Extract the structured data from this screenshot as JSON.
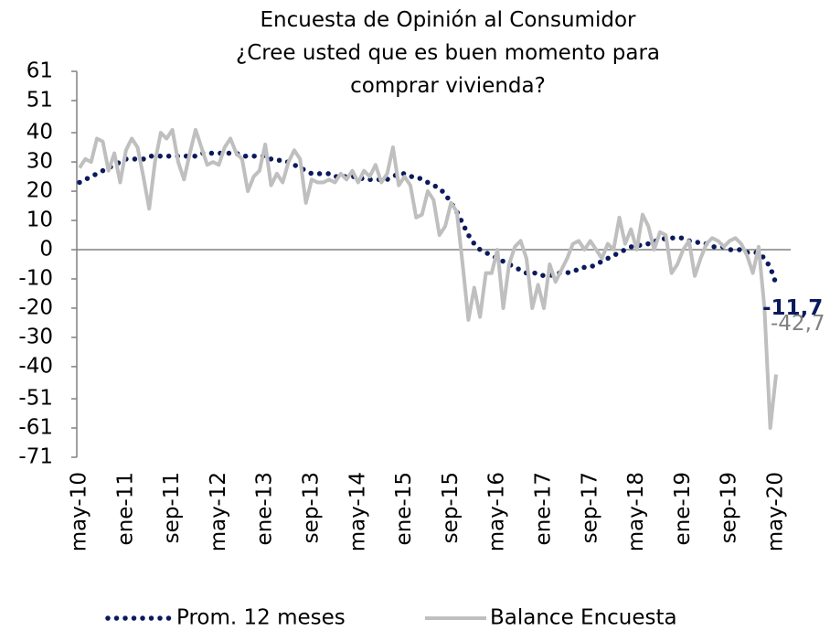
{
  "chart_data": {
    "type": "line",
    "title": "Encuesta de Opinión al Consumidor",
    "subtitle": "¿Cree usted que es buen momento para comprar vivienda?",
    "categories": [
      "may-10",
      null,
      null,
      null,
      null,
      null,
      null,
      null,
      "ene-11",
      null,
      null,
      null,
      null,
      null,
      null,
      null,
      "sep-11",
      null,
      null,
      null,
      null,
      null,
      null,
      null,
      "may-12",
      null,
      null,
      null,
      null,
      null,
      null,
      null,
      "ene-13",
      null,
      null,
      null,
      null,
      null,
      null,
      null,
      "sep-13",
      null,
      null,
      null,
      null,
      null,
      null,
      null,
      "may-14",
      null,
      null,
      null,
      null,
      null,
      null,
      null,
      "ene-15",
      null,
      null,
      null,
      null,
      null,
      null,
      null,
      "sep-15",
      null,
      null,
      null,
      null,
      null,
      null,
      null,
      "may-16",
      null,
      null,
      null,
      null,
      null,
      null,
      null,
      "ene-17",
      null,
      null,
      null,
      null,
      null,
      null,
      null,
      "sep-17",
      null,
      null,
      null,
      null,
      null,
      null,
      null,
      "may-18",
      null,
      null,
      null,
      null,
      null,
      null,
      null,
      "ene-19",
      null,
      null,
      null,
      null,
      null,
      null,
      null,
      "sep-19",
      null,
      null,
      null,
      null,
      null,
      null,
      null,
      "may-20"
    ],
    "series": [
      {
        "name": "Prom. 12 meses",
        "color": "#0b1a5c",
        "style": "dotted",
        "values": [
          23,
          24,
          25,
          26,
          27,
          28,
          29,
          30,
          31,
          31,
          31,
          31,
          32,
          32,
          32,
          32,
          32,
          32,
          32,
          32,
          32,
          33,
          33,
          33,
          33,
          33,
          33,
          33,
          32,
          32,
          32,
          32,
          32,
          31,
          31,
          30,
          30,
          29,
          28,
          27,
          26,
          26,
          26,
          26,
          25,
          25,
          25,
          25,
          25,
          24,
          24,
          24,
          24,
          24,
          25,
          26,
          26,
          25,
          25,
          24,
          23,
          22,
          21,
          19,
          16,
          13,
          9,
          5,
          2,
          0,
          -1,
          -2,
          -3,
          -4,
          -5,
          -6,
          -7,
          -8,
          -8,
          -8,
          -9,
          -9,
          -8,
          -8,
          -8,
          -7,
          -7,
          -6,
          -6,
          -5,
          -4,
          -3,
          -2,
          -1,
          0,
          1,
          1,
          2,
          2,
          3,
          3,
          4,
          4,
          4,
          4,
          3,
          3,
          2,
          2,
          1,
          1,
          1,
          0,
          0,
          0,
          -1,
          -1,
          -1,
          -3,
          -6,
          -11.7
        ],
        "value_labels": [
          null,
          null,
          null,
          null,
          null,
          null,
          null,
          null,
          null,
          null,
          null,
          null,
          null,
          null,
          null,
          null,
          null,
          null,
          null,
          null,
          null,
          null,
          null,
          null,
          null,
          null,
          null,
          null,
          null,
          null,
          null,
          null,
          null,
          null,
          null,
          null,
          null,
          null,
          null,
          null,
          null,
          null,
          null,
          null,
          null,
          null,
          null,
          null,
          null,
          null,
          null,
          null,
          null,
          null,
          null,
          null,
          null,
          null,
          null,
          null,
          null,
          null,
          null,
          null,
          null,
          null,
          null,
          null,
          null,
          null,
          null,
          null,
          null,
          null,
          null,
          null,
          null,
          null,
          null,
          null,
          null,
          null,
          null,
          null,
          null,
          null,
          null,
          null,
          null,
          null,
          null,
          null,
          null,
          null,
          null,
          null,
          null,
          null,
          null,
          null,
          null,
          null,
          null,
          null,
          null,
          null,
          null,
          null,
          null,
          null,
          null,
          null,
          null,
          null,
          null,
          null,
          null,
          null,
          null,
          null,
          "-11,7"
        ]
      },
      {
        "name": "Balance Encuesta",
        "color": "#bfbfbf",
        "style": "solid",
        "values": [
          28,
          31,
          30,
          38,
          37,
          27,
          33,
          23,
          34,
          38,
          35,
          25,
          14,
          30,
          40,
          38,
          41,
          30,
          24,
          33,
          41,
          35,
          29,
          30,
          29,
          35,
          38,
          33,
          31,
          20,
          25,
          27,
          36,
          22,
          26,
          23,
          30,
          34,
          31,
          16,
          24,
          23,
          23,
          24,
          23,
          26,
          24,
          27,
          23,
          27,
          25,
          29,
          23,
          26,
          35,
          22,
          25,
          22,
          11,
          12,
          20,
          17,
          5,
          8,
          16,
          13,
          -5,
          -24,
          -13,
          -23,
          -8,
          -8,
          0,
          -20,
          -5,
          1,
          3,
          -3,
          -20,
          -12,
          -20,
          -5,
          -11,
          -7,
          -3,
          2,
          3,
          0,
          3,
          0,
          -3,
          2,
          0,
          11,
          2,
          7,
          0,
          12,
          8,
          0,
          6,
          5,
          -8,
          -5,
          0,
          3,
          -9,
          -3,
          2,
          4,
          3,
          1,
          3,
          4,
          2,
          -2,
          -8,
          1,
          -20,
          -61,
          -42.7
        ],
        "value_labels": [
          null,
          null,
          null,
          null,
          null,
          null,
          null,
          null,
          null,
          null,
          null,
          null,
          null,
          null,
          null,
          null,
          null,
          null,
          null,
          null,
          null,
          null,
          null,
          null,
          null,
          null,
          null,
          null,
          null,
          null,
          null,
          null,
          null,
          null,
          null,
          null,
          null,
          null,
          null,
          null,
          null,
          null,
          null,
          null,
          null,
          null,
          null,
          null,
          null,
          null,
          null,
          null,
          null,
          null,
          null,
          null,
          null,
          null,
          null,
          null,
          null,
          null,
          null,
          null,
          null,
          null,
          null,
          null,
          null,
          null,
          null,
          null,
          null,
          null,
          null,
          null,
          null,
          null,
          null,
          null,
          null,
          null,
          null,
          null,
          null,
          null,
          null,
          null,
          null,
          null,
          null,
          null,
          null,
          null,
          null,
          null,
          null,
          null,
          null,
          null,
          null,
          null,
          null,
          null,
          null,
          null,
          null,
          null,
          null,
          null,
          null,
          null,
          null,
          null,
          null,
          null,
          null,
          null,
          null,
          null,
          "-42,7"
        ]
      }
    ],
    "ylim": [
      -71,
      61
    ],
    "yticks": [
      61,
      51,
      40,
      30,
      20,
      10,
      0,
      -10,
      -20,
      -30,
      -40,
      -51,
      -61,
      -71
    ],
    "legend": "bottom"
  }
}
